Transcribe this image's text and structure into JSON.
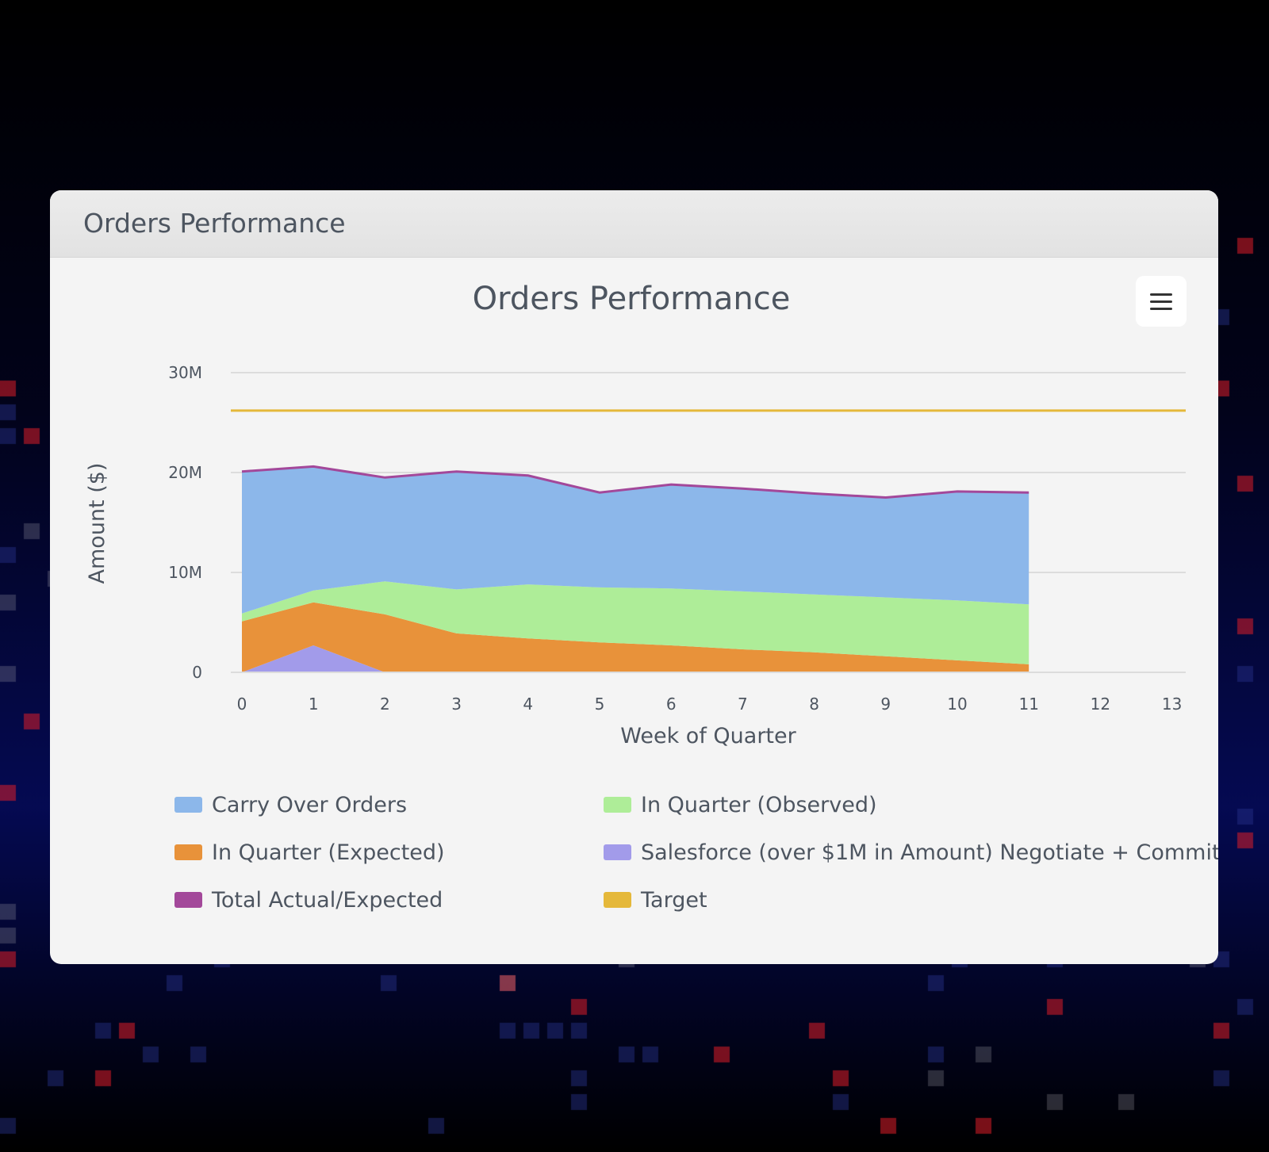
{
  "card": {
    "header_title": "Orders Performance"
  },
  "menu": {
    "icon": "hamburger-menu-icon"
  },
  "chart_data": {
    "type": "area",
    "title": "Orders Performance",
    "xlabel": "Week of Quarter",
    "ylabel": "Amount ($)",
    "xlim": [
      0,
      13
    ],
    "ylim": [
      0,
      30000000
    ],
    "x_ticks": [
      "0",
      "1",
      "2",
      "3",
      "4",
      "5",
      "6",
      "7",
      "8",
      "9",
      "10",
      "11",
      "12",
      "13"
    ],
    "y_ticks": [
      {
        "value": 0,
        "label": "0"
      },
      {
        "value": 10000000,
        "label": "10M"
      },
      {
        "value": 20000000,
        "label": "20M"
      },
      {
        "value": 30000000,
        "label": "30M"
      }
    ],
    "stacked": true,
    "grid": "horizontal",
    "legend_position": "bottom",
    "series": [
      {
        "name": "Salesforce (over $1M in Amount) Negotiate + Commit",
        "color": "#a29bea",
        "x": [
          0,
          1,
          2,
          3,
          4,
          5,
          6,
          7,
          8,
          9,
          10,
          11
        ],
        "values": [
          0,
          2700000,
          0,
          0,
          0,
          0,
          0,
          0,
          0,
          0,
          0,
          0
        ]
      },
      {
        "name": "In Quarter (Expected)",
        "color": "#e8923a",
        "x": [
          0,
          1,
          2,
          3,
          4,
          5,
          6,
          7,
          8,
          9,
          10,
          11
        ],
        "values": [
          5100000,
          4300000,
          5800000,
          3900000,
          3400000,
          3000000,
          2700000,
          2300000,
          2000000,
          1600000,
          1200000,
          800000
        ]
      },
      {
        "name": "In Quarter (Observed)",
        "color": "#aeed98",
        "x": [
          0,
          1,
          2,
          3,
          4,
          5,
          6,
          7,
          8,
          9,
          10,
          11
        ],
        "values": [
          800000,
          1200000,
          3300000,
          4400000,
          5400000,
          5500000,
          5700000,
          5800000,
          5800000,
          5900000,
          6000000,
          6000000
        ]
      },
      {
        "name": "Carry Over Orders",
        "color": "#8cb7ea",
        "x": [
          0,
          1,
          2,
          3,
          4,
          5,
          6,
          7,
          8,
          9,
          10,
          11
        ],
        "values": [
          14200000,
          12400000,
          10400000,
          11800000,
          10900000,
          9500000,
          10400000,
          10300000,
          10100000,
          10000000,
          10900000,
          11200000
        ]
      },
      {
        "name": "Total Actual/Expected",
        "color": "#a3489a",
        "type": "line",
        "x": [
          0,
          1,
          2,
          3,
          4,
          5,
          6,
          7,
          8,
          9,
          10,
          11
        ],
        "values": [
          20100000,
          20600000,
          19500000,
          20100000,
          19700000,
          18000000,
          18800000,
          18400000,
          17900000,
          17500000,
          18100000,
          18000000
        ]
      },
      {
        "name": "Target",
        "color": "#e5b83a",
        "type": "line",
        "x": [
          0,
          13
        ],
        "values": [
          26200000,
          26200000
        ]
      }
    ],
    "legend": [
      {
        "name": "Carry Over Orders",
        "color": "#8cb7ea"
      },
      {
        "name": "In Quarter (Observed)",
        "color": "#aeed98"
      },
      {
        "name": "In Quarter (Expected)",
        "color": "#e8923a"
      },
      {
        "name": "Salesforce (over $1M in Amount) Negotiate + Commit",
        "color": "#a29bea"
      },
      {
        "name": "Total Actual/Expected",
        "color": "#a3489a"
      },
      {
        "name": "Target",
        "color": "#e5b83a"
      }
    ]
  }
}
